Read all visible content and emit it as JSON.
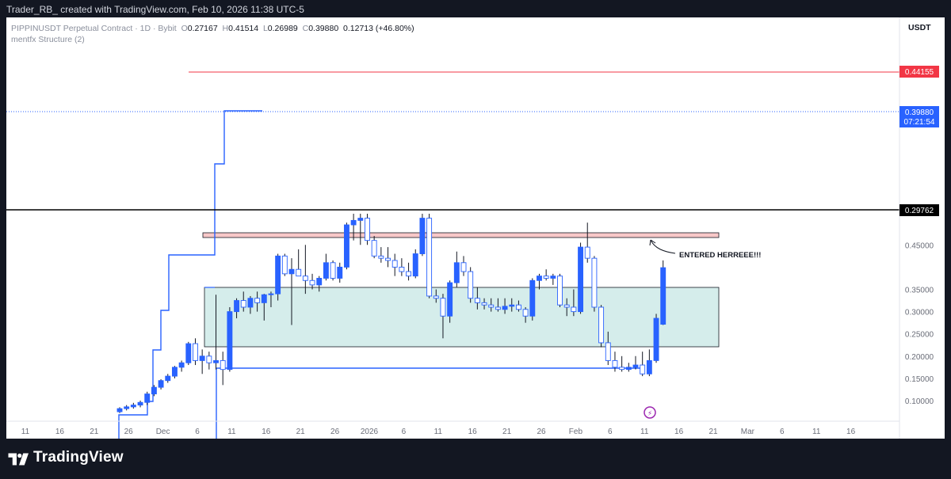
{
  "header": {
    "text": "Trader_RB_ created with TradingView.com, Feb 10, 2026 11:38 UTC-5"
  },
  "legend": {
    "symbol": "PIPPINUSDT Perpetual Contract · 1D · Bybit",
    "o_label": "O",
    "o": "0.27167",
    "h_label": "H",
    "h": "0.41514",
    "l_label": "L",
    "l": "0.26989",
    "c_label": "C",
    "c": "0.39880",
    "change": "0.12713 (+46.80%)",
    "indicator": "mentfx Structure (2)"
  },
  "price_axis": {
    "currency": "USDT",
    "ticks": [
      "0.45000",
      "0.35000",
      "0.30000",
      "0.25000",
      "0.20000",
      "0.15000",
      "0.10000"
    ]
  },
  "time_axis": {
    "ticks": [
      "11",
      "16",
      "21",
      "26",
      "Dec",
      "6",
      "11",
      "16",
      "21",
      "26",
      "2026",
      "6",
      "11",
      "16",
      "21",
      "26",
      "Feb",
      "6",
      "11",
      "16",
      "21",
      "Mar",
      "6",
      "11",
      "16"
    ]
  },
  "price_labels": {
    "red_level": "0.44155",
    "current_price": "0.39880",
    "countdown": "07:21:54",
    "black_level": "0.29762"
  },
  "annotation": {
    "text": "ENTERED HERREEE!!!"
  },
  "footer": {
    "brand": "TradingView"
  },
  "colors": {
    "up": "#2962ff",
    "down": "#ffffff",
    "wick": "#131722",
    "red_line": "#f23645",
    "black_line": "#000000",
    "demand_zone": "#b2dfdb",
    "entry_zone": "#f8c8c8"
  },
  "chart_data": {
    "type": "candlestick",
    "ylim": [
      0.07,
      0.52
    ],
    "levels": {
      "red": 0.44155,
      "black": 0.29762,
      "current": 0.3988
    },
    "candles": [
      {
        "d": "Nov 23",
        "o": 0.075,
        "h": 0.085,
        "l": 0.072,
        "c": 0.082
      },
      {
        "d": "Nov 24",
        "o": 0.082,
        "h": 0.09,
        "l": 0.078,
        "c": 0.086
      },
      {
        "d": "Nov 25",
        "o": 0.086,
        "h": 0.095,
        "l": 0.082,
        "c": 0.09
      },
      {
        "d": "Nov 26",
        "o": 0.09,
        "h": 0.1,
        "l": 0.085,
        "c": 0.096
      },
      {
        "d": "Nov 27",
        "o": 0.096,
        "h": 0.12,
        "l": 0.09,
        "c": 0.115
      },
      {
        "d": "Nov 28",
        "o": 0.115,
        "h": 0.135,
        "l": 0.11,
        "c": 0.13
      },
      {
        "d": "Nov 29",
        "o": 0.13,
        "h": 0.148,
        "l": 0.125,
        "c": 0.145
      },
      {
        "d": "Nov 30",
        "o": 0.145,
        "h": 0.16,
        "l": 0.14,
        "c": 0.155
      },
      {
        "d": "Dec 1",
        "o": 0.155,
        "h": 0.178,
        "l": 0.15,
        "c": 0.175
      },
      {
        "d": "Dec 2",
        "o": 0.175,
        "h": 0.19,
        "l": 0.165,
        "c": 0.185
      },
      {
        "d": "Dec 3",
        "o": 0.185,
        "h": 0.232,
        "l": 0.18,
        "c": 0.228
      },
      {
        "d": "Dec 4",
        "o": 0.228,
        "h": 0.24,
        "l": 0.18,
        "c": 0.19
      },
      {
        "d": "Dec 5",
        "o": 0.19,
        "h": 0.215,
        "l": 0.16,
        "c": 0.2
      },
      {
        "d": "Dec 6",
        "o": 0.2,
        "h": 0.21,
        "l": 0.17,
        "c": 0.185
      },
      {
        "d": "Dec 7",
        "o": 0.185,
        "h": 0.338,
        "l": 0.17,
        "c": 0.19
      },
      {
        "d": "Dec 8",
        "o": 0.19,
        "h": 0.21,
        "l": 0.135,
        "c": 0.17
      },
      {
        "d": "Dec 9",
        "o": 0.17,
        "h": 0.31,
        "l": 0.165,
        "c": 0.3
      },
      {
        "d": "Dec 10",
        "o": 0.3,
        "h": 0.33,
        "l": 0.285,
        "c": 0.325
      },
      {
        "d": "Dec 11",
        "o": 0.325,
        "h": 0.345,
        "l": 0.3,
        "c": 0.31
      },
      {
        "d": "Dec 12",
        "o": 0.31,
        "h": 0.335,
        "l": 0.295,
        "c": 0.33
      },
      {
        "d": "Dec 13",
        "o": 0.33,
        "h": 0.345,
        "l": 0.3,
        "c": 0.32
      },
      {
        "d": "Dec 14",
        "o": 0.32,
        "h": 0.34,
        "l": 0.28,
        "c": 0.338
      },
      {
        "d": "Dec 15",
        "o": 0.338,
        "h": 0.345,
        "l": 0.31,
        "c": 0.34
      },
      {
        "d": "Dec 16",
        "o": 0.34,
        "h": 0.43,
        "l": 0.325,
        "c": 0.425
      },
      {
        "d": "Dec 17",
        "o": 0.425,
        "h": 0.43,
        "l": 0.38,
        "c": 0.385
      },
      {
        "d": "Dec 18",
        "o": 0.385,
        "h": 0.42,
        "l": 0.27,
        "c": 0.395
      },
      {
        "d": "Dec 19",
        "o": 0.395,
        "h": 0.44,
        "l": 0.38,
        "c": 0.38
      },
      {
        "d": "Dec 20",
        "o": 0.38,
        "h": 0.45,
        "l": 0.34,
        "c": 0.37
      },
      {
        "d": "Dec 21",
        "o": 0.37,
        "h": 0.385,
        "l": 0.35,
        "c": 0.36
      },
      {
        "d": "Dec 22",
        "o": 0.36,
        "h": 0.38,
        "l": 0.345,
        "c": 0.375
      },
      {
        "d": "Dec 23",
        "o": 0.375,
        "h": 0.43,
        "l": 0.37,
        "c": 0.41
      },
      {
        "d": "Dec 24",
        "o": 0.41,
        "h": 0.415,
        "l": 0.37,
        "c": 0.375
      },
      {
        "d": "Dec 25",
        "o": 0.375,
        "h": 0.41,
        "l": 0.365,
        "c": 0.4
      },
      {
        "d": "Dec 26",
        "o": 0.4,
        "h": 0.5,
        "l": 0.395,
        "c": 0.495
      },
      {
        "d": "Dec 27",
        "o": 0.495,
        "h": 0.52,
        "l": 0.46,
        "c": 0.505
      },
      {
        "d": "Dec 28",
        "o": 0.505,
        "h": 0.52,
        "l": 0.45,
        "c": 0.51
      },
      {
        "d": "Dec 29",
        "o": 0.51,
        "h": 0.52,
        "l": 0.45,
        "c": 0.46
      },
      {
        "d": "Dec 30",
        "o": 0.46,
        "h": 0.47,
        "l": 0.42,
        "c": 0.425
      },
      {
        "d": "Dec 31",
        "o": 0.425,
        "h": 0.445,
        "l": 0.41,
        "c": 0.42
      },
      {
        "d": "Jan 1",
        "o": 0.42,
        "h": 0.445,
        "l": 0.4,
        "c": 0.415
      },
      {
        "d": "Jan 2",
        "o": 0.415,
        "h": 0.43,
        "l": 0.38,
        "c": 0.4
      },
      {
        "d": "Jan 3",
        "o": 0.4,
        "h": 0.42,
        "l": 0.38,
        "c": 0.39
      },
      {
        "d": "Jan 4",
        "o": 0.39,
        "h": 0.41,
        "l": 0.37,
        "c": 0.38
      },
      {
        "d": "Jan 5",
        "o": 0.38,
        "h": 0.44,
        "l": 0.375,
        "c": 0.43
      },
      {
        "d": "Jan 6",
        "o": 0.43,
        "h": 0.52,
        "l": 0.425,
        "c": 0.51
      },
      {
        "d": "Jan 7",
        "o": 0.51,
        "h": 0.52,
        "l": 0.33,
        "c": 0.335
      },
      {
        "d": "Jan 8",
        "o": 0.335,
        "h": 0.35,
        "l": 0.32,
        "c": 0.33
      },
      {
        "d": "Jan 9",
        "o": 0.33,
        "h": 0.34,
        "l": 0.24,
        "c": 0.29
      },
      {
        "d": "Jan 10",
        "o": 0.29,
        "h": 0.37,
        "l": 0.275,
        "c": 0.365
      },
      {
        "d": "Jan 11",
        "o": 0.365,
        "h": 0.435,
        "l": 0.355,
        "c": 0.41
      },
      {
        "d": "Jan 12",
        "o": 0.41,
        "h": 0.425,
        "l": 0.38,
        "c": 0.39
      },
      {
        "d": "Jan 13",
        "o": 0.39,
        "h": 0.4,
        "l": 0.32,
        "c": 0.33
      },
      {
        "d": "Jan 14",
        "o": 0.33,
        "h": 0.355,
        "l": 0.305,
        "c": 0.32
      },
      {
        "d": "Jan 15",
        "o": 0.32,
        "h": 0.33,
        "l": 0.305,
        "c": 0.315
      },
      {
        "d": "Jan 16",
        "o": 0.315,
        "h": 0.33,
        "l": 0.3,
        "c": 0.31
      },
      {
        "d": "Jan 17",
        "o": 0.31,
        "h": 0.33,
        "l": 0.3,
        "c": 0.305
      },
      {
        "d": "Jan 18",
        "o": 0.305,
        "h": 0.33,
        "l": 0.295,
        "c": 0.312
      },
      {
        "d": "Jan 19",
        "o": 0.312,
        "h": 0.33,
        "l": 0.3,
        "c": 0.315
      },
      {
        "d": "Jan 20",
        "o": 0.315,
        "h": 0.325,
        "l": 0.3,
        "c": 0.305
      },
      {
        "d": "Jan 21",
        "o": 0.305,
        "h": 0.31,
        "l": 0.275,
        "c": 0.29
      },
      {
        "d": "Jan 22",
        "o": 0.29,
        "h": 0.375,
        "l": 0.28,
        "c": 0.37
      },
      {
        "d": "Jan 23",
        "o": 0.37,
        "h": 0.385,
        "l": 0.35,
        "c": 0.38
      },
      {
        "d": "Jan 24",
        "o": 0.38,
        "h": 0.395,
        "l": 0.37,
        "c": 0.375
      },
      {
        "d": "Jan 25",
        "o": 0.375,
        "h": 0.385,
        "l": 0.36,
        "c": 0.38
      },
      {
        "d": "Jan 26",
        "o": 0.38,
        "h": 0.385,
        "l": 0.31,
        "c": 0.315
      },
      {
        "d": "Jan 27",
        "o": 0.315,
        "h": 0.33,
        "l": 0.29,
        "c": 0.31
      },
      {
        "d": "Jan 28",
        "o": 0.31,
        "h": 0.35,
        "l": 0.29,
        "c": 0.3
      },
      {
        "d": "Jan 29",
        "o": 0.3,
        "h": 0.455,
        "l": 0.295,
        "c": 0.445
      },
      {
        "d": "Jan 30",
        "o": 0.445,
        "h": 0.5,
        "l": 0.41,
        "c": 0.42
      },
      {
        "d": "Jan 31",
        "o": 0.42,
        "h": 0.425,
        "l": 0.3,
        "c": 0.31
      },
      {
        "d": "Feb 1",
        "o": 0.31,
        "h": 0.315,
        "l": 0.22,
        "c": 0.23
      },
      {
        "d": "Feb 2",
        "o": 0.23,
        "h": 0.255,
        "l": 0.18,
        "c": 0.19
      },
      {
        "d": "Feb 3",
        "o": 0.19,
        "h": 0.21,
        "l": 0.165,
        "c": 0.175
      },
      {
        "d": "Feb 4",
        "o": 0.175,
        "h": 0.2,
        "l": 0.165,
        "c": 0.17
      },
      {
        "d": "Feb 5",
        "o": 0.17,
        "h": 0.185,
        "l": 0.165,
        "c": 0.175
      },
      {
        "d": "Feb 6",
        "o": 0.175,
        "h": 0.2,
        "l": 0.17,
        "c": 0.18
      },
      {
        "d": "Feb 7",
        "o": 0.18,
        "h": 0.21,
        "l": 0.155,
        "c": 0.16
      },
      {
        "d": "Feb 8",
        "o": 0.16,
        "h": 0.215,
        "l": 0.155,
        "c": 0.19
      },
      {
        "d": "Feb 9",
        "o": 0.19,
        "h": 0.295,
        "l": 0.185,
        "c": 0.285
      },
      {
        "d": "Feb 10",
        "o": 0.27167,
        "h": 0.41514,
        "l": 0.26989,
        "c": 0.3988
      }
    ]
  }
}
